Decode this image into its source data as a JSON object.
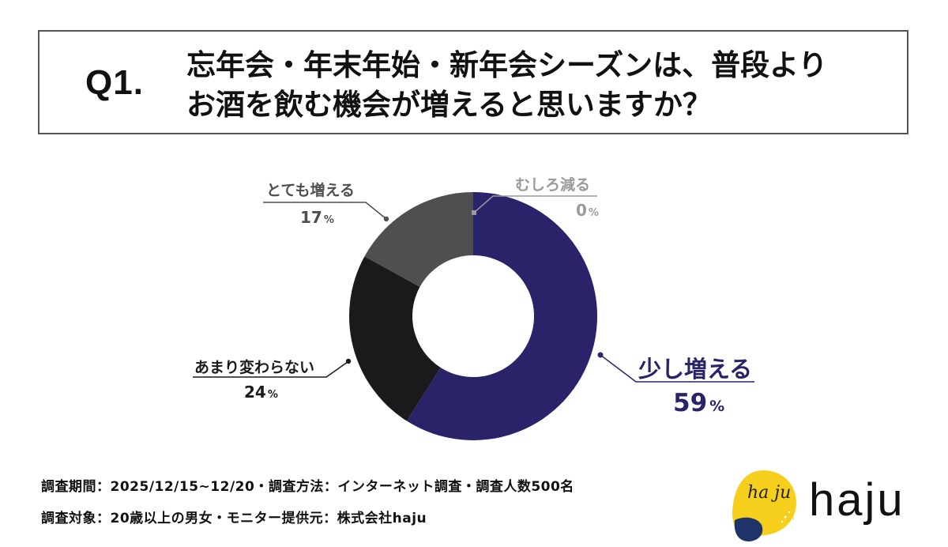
{
  "question": {
    "number": "Q1.",
    "line1": "忘年会・年末年始・新年会シーズンは、普段より",
    "line2": "お酒を飲む機会が増えると思いますか？"
  },
  "colors": {
    "increase_slightly": "#29246a",
    "unchanged": "#1b191c",
    "increase_greatly": "#4f4e51",
    "decrease": "#9a999b",
    "title_border": "#555555"
  },
  "labels": {
    "greatly": {
      "name": "とても増える",
      "value": "17",
      "unit": "%"
    },
    "decrease": {
      "name": "むしろ減る",
      "value": "0",
      "unit": "%"
    },
    "unchanged": {
      "name": "あまり変わらない",
      "value": "24",
      "unit": "%"
    },
    "slightly": {
      "name": "少し増える",
      "value": "59",
      "unit": "%"
    }
  },
  "footer": {
    "line1": "調査期間：2025/12/15~12/20・調査方法：インターネット調査・調査人数500名",
    "line2": "調査対象：20歳以上の男女・モニター提供元：株式会社haju"
  },
  "logo": {
    "mark_script": "ha ju",
    "text": "haju"
  },
  "chart_data": {
    "type": "pie",
    "subtype": "donut",
    "title": "忘年会・年末年始・新年会シーズンは、普段よりお酒を飲む機会が増えると思いますか？",
    "categories": [
      "少し増える",
      "あまり変わらない",
      "とても増える",
      "むしろ減る"
    ],
    "values": [
      59,
      24,
      17,
      0
    ],
    "unit": "%",
    "start_angle": "12 o'clock, clockwise",
    "colors": [
      "#29246a",
      "#1b191c",
      "#4f4e51",
      "#9a999b"
    ],
    "legend": "callout labels around donut"
  }
}
